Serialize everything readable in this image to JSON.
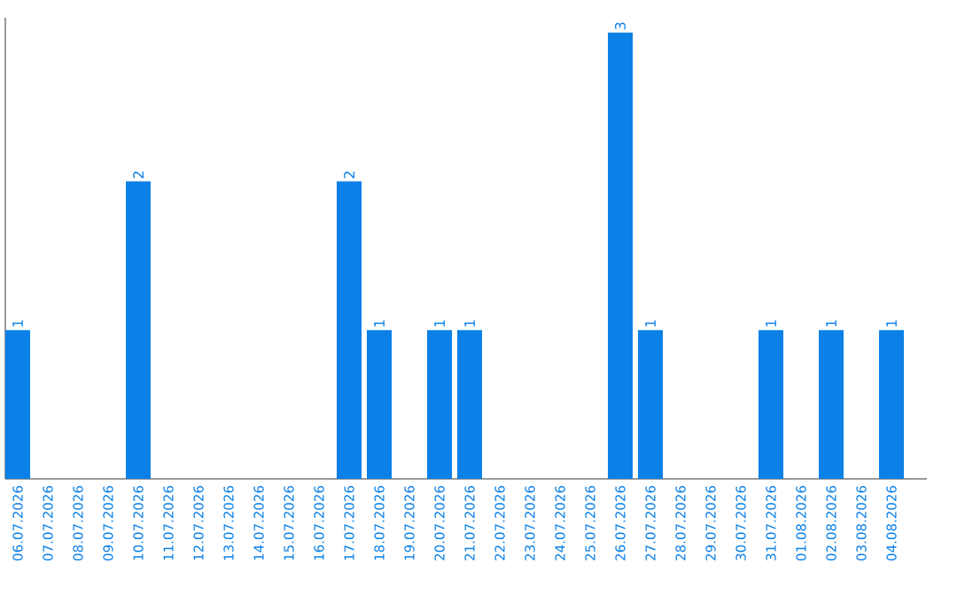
{
  "chart_data": {
    "type": "bar",
    "categories": [
      "06.07.2026",
      "07.07.2026",
      "08.07.2026",
      "09.07.2026",
      "10.07.2026",
      "11.07.2026",
      "12.07.2026",
      "13.07.2026",
      "14.07.2026",
      "15.07.2026",
      "16.07.2026",
      "17.07.2026",
      "18.07.2026",
      "19.07.2026",
      "20.07.2026",
      "21.07.2026",
      "22.07.2026",
      "23.07.2026",
      "24.07.2026",
      "25.07.2026",
      "26.07.2026",
      "27.07.2026",
      "28.07.2026",
      "29.07.2026",
      "30.07.2026",
      "31.07.2026",
      "01.08.2026",
      "02.08.2026",
      "03.08.2026",
      "04.08.2026"
    ],
    "values": [
      1,
      0,
      0,
      0,
      2,
      0,
      0,
      0,
      0,
      0,
      0,
      2,
      1,
      0,
      1,
      1,
      0,
      0,
      0,
      0,
      3,
      1,
      0,
      0,
      0,
      1,
      0,
      1,
      0,
      1
    ],
    "value_labels": [
      "1",
      null,
      null,
      null,
      "2",
      null,
      null,
      null,
      null,
      null,
      null,
      "2",
      "1",
      null,
      "1",
      "1",
      null,
      null,
      null,
      null,
      "3",
      "1",
      null,
      null,
      null,
      "1",
      null,
      "1",
      null,
      "1"
    ],
    "color": "#0b80e6",
    "ylim": [
      0,
      3.1
    ],
    "tick_labels": "x",
    "grid": false
  }
}
